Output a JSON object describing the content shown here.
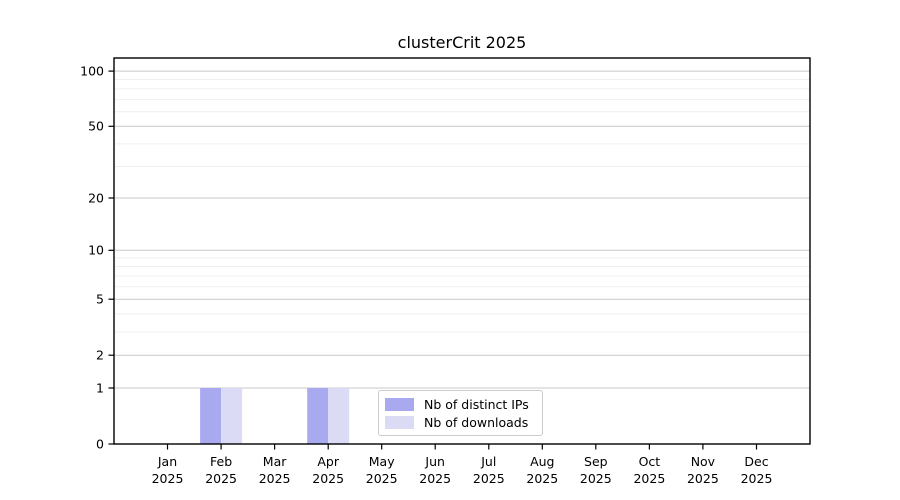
{
  "page": {
    "background": "#ffffff"
  },
  "chart_data": {
    "type": "bar",
    "title": "clusterCrit 2025",
    "categories": [
      "Jan",
      "Feb",
      "Mar",
      "Apr",
      "May",
      "Jun",
      "Jul",
      "Aug",
      "Sep",
      "Oct",
      "Nov",
      "Dec"
    ],
    "x_sublabel": "2025",
    "series": [
      {
        "name": "Nb of distinct IPs",
        "color": "#a9a9f0",
        "values": [
          0,
          1,
          0,
          1,
          0,
          0,
          0,
          0,
          0,
          0,
          0,
          0
        ]
      },
      {
        "name": "Nb of downloads",
        "color": "#dbdbf6",
        "values": [
          0,
          1,
          0,
          1,
          0,
          0,
          0,
          0,
          0,
          0,
          0,
          0
        ]
      }
    ],
    "xlabel": "",
    "ylabel": "",
    "y_axis": {
      "scale": "log1p",
      "ticks": [
        0,
        1,
        2,
        5,
        10,
        20,
        50,
        100
      ],
      "minor_ticks": [
        3,
        4,
        6,
        7,
        8,
        9,
        30,
        40,
        60,
        70,
        80,
        90
      ],
      "range": [
        0,
        118
      ]
    },
    "grid": {
      "horizontal": true,
      "major_color": "#c9c9c9",
      "minor_color": "#efefef"
    },
    "frame_color": "#000000",
    "tick_label_color": "#000000",
    "legend_position": "inside lower right"
  }
}
